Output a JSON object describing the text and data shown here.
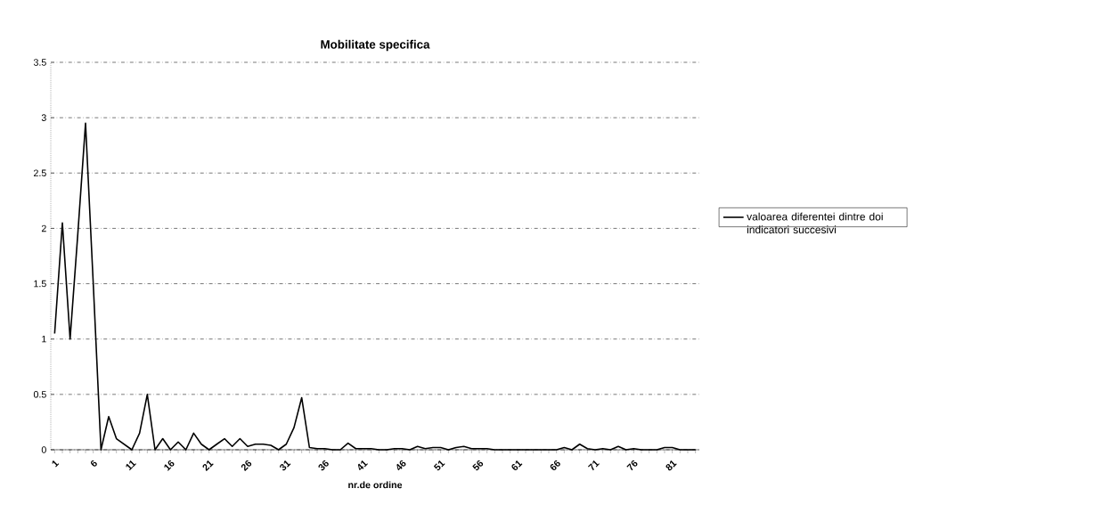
{
  "chart_data": {
    "type": "line",
    "title": "Mobilitate specifica",
    "xlabel": "nr.de ordine",
    "categories": [
      "1",
      null,
      null,
      null,
      null,
      "6",
      null,
      null,
      null,
      null,
      "11",
      null,
      null,
      null,
      null,
      "16",
      null,
      null,
      null,
      null,
      "21",
      null,
      null,
      null,
      null,
      "26",
      null,
      null,
      null,
      null,
      "31",
      null,
      null,
      null,
      null,
      "36",
      null,
      null,
      null,
      null,
      "41",
      null,
      null,
      null,
      null,
      "46",
      null,
      null,
      null,
      null,
      "51",
      null,
      null,
      null,
      null,
      "56",
      null,
      null,
      null,
      null,
      "61",
      null,
      null,
      null,
      null,
      "66",
      null,
      null,
      null,
      null,
      "71",
      null,
      null,
      null,
      null,
      "76",
      null,
      null,
      null,
      null,
      "81",
      null,
      null,
      null
    ],
    "series": [
      {
        "name": "valoarea diferentei dintre doi indicatori succesivi",
        "color": "#000000",
        "values": [
          1.05,
          2.05,
          1.0,
          1.95,
          2.95,
          1.5,
          0,
          0.3,
          0.1,
          0.05,
          0,
          0.15,
          0.5,
          0,
          0.1,
          0,
          0.07,
          0,
          0.15,
          0.05,
          0,
          0.05,
          0.1,
          0.03,
          0.1,
          0.03,
          0.05,
          0.05,
          0.04,
          0,
          0.05,
          0.2,
          0.47,
          0.02,
          0.01,
          0.01,
          0,
          0,
          0.06,
          0.01,
          0.01,
          0.01,
          0,
          0,
          0.01,
          0.01,
          0,
          0.03,
          0.01,
          0.02,
          0.02,
          0,
          0.02,
          0.03,
          0.01,
          0.01,
          0.01,
          0,
          0,
          0,
          0,
          0,
          0,
          0,
          0,
          0,
          0.02,
          0,
          0.05,
          0.01,
          0,
          0.01,
          0,
          0.03,
          0,
          0.01,
          0,
          0,
          0,
          0.02,
          0.02,
          0,
          0,
          0
        ]
      }
    ],
    "ylim": [
      0,
      3.5
    ],
    "yticks": [
      0,
      0.5,
      1,
      1.5,
      2,
      2.5,
      3,
      3.5
    ],
    "grid": "y",
    "legend": "right",
    "marker": "none",
    "line_style": "solid"
  }
}
